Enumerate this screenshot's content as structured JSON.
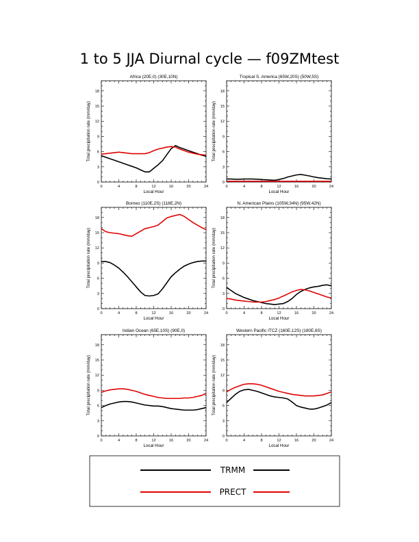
{
  "title": "1 to 5 JJA Diurnal cycle — f09ZMtest",
  "series_colors": {
    "TRMM": "#000000",
    "PRECT": "#e00000"
  },
  "legend": [
    {
      "name": "TRMM",
      "color": "#000000"
    },
    {
      "name": "PRECT",
      "color": "#e00000"
    }
  ],
  "chart_data": [
    {
      "type": "line",
      "title": "Africa (20E,0) (30E,10N)",
      "xlabel": "Local Hour",
      "ylabel": "Total precipitation rate (mm/day)",
      "xlim": [
        0,
        24
      ],
      "ylim": [
        0,
        20
      ],
      "xticks": [
        0,
        4,
        8,
        12,
        16,
        20,
        24
      ],
      "yticks": [
        0,
        3,
        6,
        9,
        12,
        15,
        18
      ],
      "x": [
        0,
        1,
        2,
        3,
        4,
        5,
        6,
        7,
        8,
        9,
        10,
        11,
        12,
        13,
        14,
        15,
        16,
        17,
        18,
        19,
        20,
        21,
        22,
        23,
        24
      ],
      "series": [
        {
          "name": "TRMM",
          "values": [
            5.2,
            4.9,
            4.6,
            4.3,
            4.0,
            3.7,
            3.4,
            3.1,
            2.8,
            2.4,
            2.0,
            2.0,
            2.7,
            3.4,
            4.2,
            5.4,
            6.6,
            7.2,
            6.8,
            6.5,
            6.2,
            5.9,
            5.6,
            5.3,
            5.1
          ]
        },
        {
          "name": "PRECT",
          "values": [
            5.5,
            5.6,
            5.7,
            5.8,
            5.9,
            5.8,
            5.7,
            5.6,
            5.6,
            5.6,
            5.6,
            5.8,
            6.2,
            6.5,
            6.7,
            6.9,
            7.0,
            6.9,
            6.5,
            6.2,
            5.9,
            5.7,
            5.5,
            5.4,
            5.3
          ]
        }
      ]
    },
    {
      "type": "line",
      "title": "Tropical S. America (65W,20S) (50W,5S)",
      "xlabel": "Local Hour",
      "ylabel": "Total precipitation rate (mm/day)",
      "xlim": [
        0,
        24
      ],
      "ylim": [
        0,
        20
      ],
      "xticks": [
        0,
        4,
        8,
        12,
        16,
        20,
        24
      ],
      "yticks": [
        0,
        3,
        6,
        9,
        12,
        15,
        18
      ],
      "x": [
        0,
        1,
        2,
        3,
        4,
        5,
        6,
        7,
        8,
        9,
        10,
        11,
        12,
        13,
        14,
        15,
        16,
        17,
        18,
        19,
        20,
        21,
        22,
        23,
        24
      ],
      "series": [
        {
          "name": "TRMM",
          "values": [
            0.6,
            0.6,
            0.55,
            0.55,
            0.6,
            0.6,
            0.6,
            0.55,
            0.5,
            0.45,
            0.4,
            0.35,
            0.5,
            0.7,
            1.0,
            1.2,
            1.4,
            1.5,
            1.35,
            1.2,
            1.0,
            0.85,
            0.75,
            0.65,
            0.6
          ]
        },
        {
          "name": "PRECT",
          "values": [
            0.15,
            0.15,
            0.15,
            0.15,
            0.15,
            0.15,
            0.15,
            0.15,
            0.15,
            0.15,
            0.15,
            0.15,
            0.15,
            0.15,
            0.15,
            0.15,
            0.15,
            0.15,
            0.15,
            0.15,
            0.15,
            0.15,
            0.15,
            0.15,
            0.15
          ]
        }
      ]
    },
    {
      "type": "line",
      "title": "Borneo (110E,2S) (116E,2N)",
      "xlabel": "Local Hour",
      "ylabel": "Total precipitation rate (mm/day)",
      "xlim": [
        0,
        24
      ],
      "ylim": [
        0,
        20
      ],
      "xticks": [
        0,
        4,
        8,
        12,
        16,
        20,
        24
      ],
      "yticks": [
        0,
        3,
        6,
        9,
        12,
        15,
        18
      ],
      "x": [
        0,
        1,
        2,
        3,
        4,
        5,
        6,
        7,
        8,
        9,
        10,
        11,
        12,
        13,
        14,
        15,
        16,
        17,
        18,
        19,
        20,
        21,
        22,
        23,
        24
      ],
      "series": [
        {
          "name": "TRMM",
          "values": [
            9.3,
            9.3,
            9.1,
            8.6,
            8.0,
            7.2,
            6.3,
            5.3,
            4.3,
            3.3,
            2.6,
            2.5,
            2.6,
            2.9,
            3.9,
            5.1,
            6.3,
            7.1,
            7.8,
            8.4,
            8.8,
            9.1,
            9.3,
            9.4,
            9.4
          ]
        },
        {
          "name": "PRECT",
          "values": [
            15.8,
            15.2,
            15.0,
            14.9,
            14.8,
            14.6,
            14.4,
            14.3,
            14.8,
            15.3,
            15.8,
            16.0,
            16.2,
            16.5,
            17.2,
            17.9,
            18.2,
            18.4,
            18.6,
            18.2,
            17.6,
            17.0,
            16.5,
            16.0,
            15.6
          ]
        }
      ]
    },
    {
      "type": "line",
      "title": "N. American Plains (105W,34N) (95W,42N)",
      "xlabel": "Local Hour",
      "ylabel": "Total precipitation rate (mm/day)",
      "xlim": [
        0,
        24
      ],
      "ylim": [
        0,
        20
      ],
      "xticks": [
        0,
        4,
        8,
        12,
        16,
        20,
        24
      ],
      "yticks": [
        0,
        3,
        6,
        9,
        12,
        15,
        18
      ],
      "x": [
        0,
        1,
        2,
        3,
        4,
        5,
        6,
        7,
        8,
        9,
        10,
        11,
        12,
        13,
        14,
        15,
        16,
        17,
        18,
        19,
        20,
        21,
        22,
        23,
        24
      ],
      "series": [
        {
          "name": "TRMM",
          "values": [
            4.2,
            3.6,
            3.0,
            2.6,
            2.2,
            1.9,
            1.6,
            1.4,
            1.2,
            1.0,
            0.9,
            0.8,
            0.9,
            1.0,
            1.4,
            2.0,
            2.8,
            3.4,
            3.8,
            4.1,
            4.3,
            4.4,
            4.6,
            4.7,
            4.5
          ]
        },
        {
          "name": "PRECT",
          "values": [
            2.0,
            1.9,
            1.7,
            1.6,
            1.5,
            1.4,
            1.3,
            1.3,
            1.3,
            1.4,
            1.6,
            1.8,
            2.1,
            2.5,
            2.9,
            3.3,
            3.6,
            3.8,
            3.7,
            3.5,
            3.2,
            2.9,
            2.6,
            2.3,
            2.1
          ]
        }
      ]
    },
    {
      "type": "line",
      "title": "Indian Ocean (65E,10S) (90E,0)",
      "xlabel": "Local Hour",
      "ylabel": "Total precipitation rate (mm/day)",
      "xlim": [
        0,
        24
      ],
      "ylim": [
        0,
        20
      ],
      "xticks": [
        0,
        4,
        8,
        12,
        16,
        20,
        24
      ],
      "yticks": [
        0,
        3,
        6,
        9,
        12,
        15,
        18
      ],
      "x": [
        0,
        1,
        2,
        3,
        4,
        5,
        6,
        7,
        8,
        9,
        10,
        11,
        12,
        13,
        14,
        15,
        16,
        17,
        18,
        19,
        20,
        21,
        22,
        23,
        24
      ],
      "series": [
        {
          "name": "TRMM",
          "values": [
            5.6,
            6.0,
            6.3,
            6.5,
            6.7,
            6.8,
            6.8,
            6.7,
            6.5,
            6.3,
            6.1,
            6.0,
            5.9,
            5.9,
            5.8,
            5.6,
            5.4,
            5.3,
            5.2,
            5.1,
            5.1,
            5.1,
            5.2,
            5.4,
            5.6
          ]
        },
        {
          "name": "PRECT",
          "values": [
            8.6,
            8.9,
            9.1,
            9.2,
            9.3,
            9.3,
            9.2,
            9.0,
            8.8,
            8.5,
            8.2,
            8.0,
            7.8,
            7.6,
            7.5,
            7.4,
            7.4,
            7.4,
            7.4,
            7.5,
            7.5,
            7.6,
            7.8,
            8.0,
            8.4
          ]
        }
      ]
    },
    {
      "type": "line",
      "title": "Western Pacific ITCZ (160E,12S) (180E,6S)",
      "xlabel": "Local Hour",
      "ylabel": "Total precipitation rate (mm/day)",
      "xlim": [
        0,
        24
      ],
      "ylim": [
        0,
        20
      ],
      "xticks": [
        0,
        4,
        8,
        12,
        16,
        20,
        24
      ],
      "yticks": [
        0,
        3,
        6,
        9,
        12,
        15,
        18
      ],
      "x": [
        0,
        1,
        2,
        3,
        4,
        5,
        6,
        7,
        8,
        9,
        10,
        11,
        12,
        13,
        14,
        15,
        16,
        17,
        18,
        19,
        20,
        21,
        22,
        23,
        24
      ],
      "series": [
        {
          "name": "TRMM",
          "values": [
            6.6,
            7.4,
            8.2,
            8.8,
            9.1,
            9.2,
            9.0,
            8.8,
            8.5,
            8.2,
            7.9,
            7.7,
            7.6,
            7.5,
            7.3,
            6.7,
            6.0,
            5.7,
            5.5,
            5.3,
            5.3,
            5.5,
            5.8,
            6.1,
            6.6
          ]
        },
        {
          "name": "PRECT",
          "values": [
            8.7,
            9.2,
            9.6,
            9.9,
            10.2,
            10.3,
            10.3,
            10.2,
            10.0,
            9.7,
            9.4,
            9.1,
            8.8,
            8.6,
            8.4,
            8.2,
            8.1,
            8.0,
            7.9,
            7.9,
            7.9,
            8.0,
            8.1,
            8.4,
            8.7
          ]
        }
      ]
    }
  ]
}
